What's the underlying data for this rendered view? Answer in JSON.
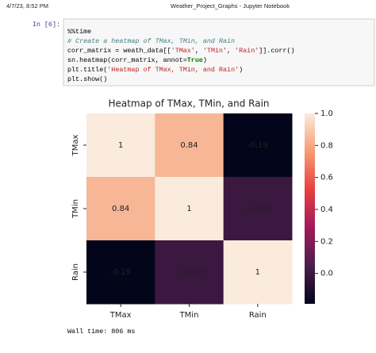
{
  "header": {
    "datetime": "4/7/23, 8:52 PM",
    "title": "Weather_Project_Graphs - Jupyter Notebook"
  },
  "cell": {
    "prompt": "In [6]:",
    "code": [
      [
        "%%time"
      ],
      [
        "# Create a heatmap of TMax, TMin, and Rain"
      ],
      [
        "corr_matrix = weath_data[[",
        "'TMax'",
        ", ",
        "'TMin'",
        ", ",
        "'Rain'",
        "]].corr()"
      ],
      [
        "sn.heatmap(corr_matrix, annot=",
        "True",
        ")"
      ],
      [
        "plt.title(",
        "'Heatmap of TMax, TMin, and Rain'",
        ")"
      ],
      [
        "plt.show()"
      ]
    ],
    "output": "Wall time: 806 ms"
  },
  "chart_data": {
    "type": "heatmap",
    "title": "Heatmap of TMax, TMin, and Rain",
    "x_categories": [
      "TMax",
      "TMin",
      "Rain"
    ],
    "y_categories": [
      "TMax",
      "TMin",
      "Rain"
    ],
    "values": [
      [
        1,
        0.84,
        -0.19
      ],
      [
        0.84,
        1,
        -0.0058
      ],
      [
        -0.19,
        -0.0058,
        1
      ]
    ],
    "colormap": [
      "#03051a",
      "#4c1d4b",
      "#a11a5b",
      "#e83f3f",
      "#f69c73",
      "#faebdd"
    ],
    "clim": [
      -0.19,
      1
    ],
    "cticks": [
      {
        "value": 1,
        "label": "1.0"
      },
      0.8,
      0.6,
      0.4,
      0.2,
      {
        "value": 0,
        "label": "0.0"
      }
    ]
  }
}
